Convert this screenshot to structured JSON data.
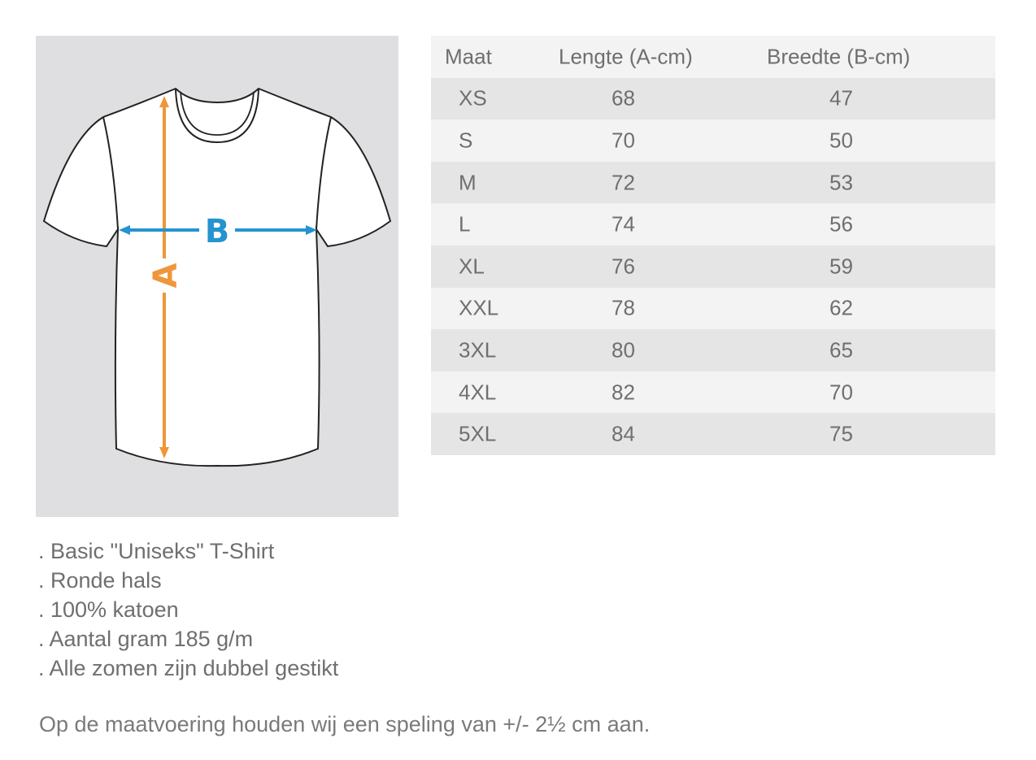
{
  "diagram": {
    "label_a": "A",
    "label_b": "B",
    "colors": {
      "a_arrow": "#f0963a",
      "b_arrow": "#2593cf",
      "background": "#dfdfe1"
    }
  },
  "table": {
    "headers": [
      "Maat",
      "Lengte (A-cm)",
      "Breedte (B-cm)"
    ],
    "rows": [
      [
        "XS",
        "68",
        "47"
      ],
      [
        "S",
        "70",
        "50"
      ],
      [
        "M",
        "72",
        "53"
      ],
      [
        "L",
        "74",
        "56"
      ],
      [
        "XL",
        "76",
        "59"
      ],
      [
        "XXL",
        "78",
        "62"
      ],
      [
        "3XL",
        "80",
        "65"
      ],
      [
        "4XL",
        "82",
        "70"
      ],
      [
        "5XL",
        "84",
        "75"
      ]
    ]
  },
  "features": [
    ". Basic \"Uniseks\" T-Shirt",
    ". Ronde hals",
    ". 100% katoen",
    ". Aantal gram 185 g/m",
    ". Alle zomen zijn dubbel gestikt"
  ],
  "note": "Op de maatvoering houden wij een speling van +/- 2½ cm aan."
}
